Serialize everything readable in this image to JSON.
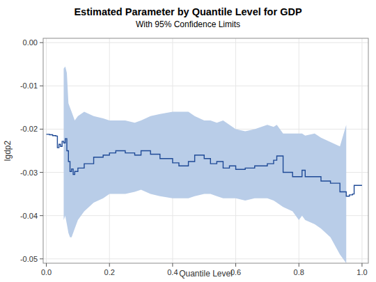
{
  "chart_data": {
    "type": "line",
    "title": "Estimated Parameter by Quantile Level for GDP",
    "subtitle": "With 95% Confidence Limits",
    "x_label": "Quantile Level",
    "y_label": "lgdp2",
    "x": [
      0,
      0.01,
      0.02,
      0.03,
      0.035,
      0.04,
      0.045,
      0.05,
      0.055,
      0.06,
      0.065,
      0.07,
      0.075,
      0.08,
      0.085,
      0.09,
      0.1,
      0.12,
      0.15,
      0.18,
      0.2,
      0.22,
      0.25,
      0.28,
      0.3,
      0.33,
      0.36,
      0.4,
      0.42,
      0.45,
      0.47,
      0.5,
      0.52,
      0.54,
      0.56,
      0.58,
      0.6,
      0.63,
      0.66,
      0.7,
      0.72,
      0.73,
      0.75,
      0.78,
      0.8,
      0.81,
      0.82,
      0.85,
      0.87,
      0.9,
      0.93,
      0.95,
      0.96,
      0.97,
      0.975,
      1.0
    ],
    "series": [
      {
        "color": "#1f4a96",
        "line_style": "step",
        "values": [
          -0.0212,
          -0.0213,
          -0.0215,
          -0.0216,
          -0.0243,
          -0.0235,
          -0.024,
          -0.0228,
          -0.0232,
          -0.0222,
          -0.025,
          -0.0275,
          -0.0298,
          -0.0292,
          -0.0305,
          -0.0298,
          -0.029,
          -0.028,
          -0.0265,
          -0.026,
          -0.0255,
          -0.025,
          -0.0255,
          -0.026,
          -0.025,
          -0.0258,
          -0.0268,
          -0.0278,
          -0.0285,
          -0.0275,
          -0.026,
          -0.0268,
          -0.028,
          -0.0275,
          -0.029,
          -0.0285,
          -0.0293,
          -0.029,
          -0.0285,
          -0.028,
          -0.0272,
          -0.0262,
          -0.03,
          -0.031,
          -0.031,
          -0.0295,
          -0.031,
          -0.031,
          -0.032,
          -0.0325,
          -0.0345,
          -0.0355,
          -0.0352,
          -0.035,
          -0.033,
          -0.033
        ],
        "band_color": "#b9cde8",
        "upper": [
          null,
          null,
          null,
          null,
          null,
          null,
          null,
          null,
          -0.006,
          -0.0055,
          -0.007,
          -0.014,
          -0.015,
          -0.016,
          -0.017,
          -0.018,
          -0.017,
          -0.016,
          -0.017,
          -0.0175,
          -0.018,
          -0.018,
          -0.018,
          -0.0185,
          -0.018,
          -0.017,
          -0.0165,
          -0.016,
          -0.016,
          -0.016,
          -0.017,
          -0.018,
          -0.018,
          -0.0185,
          -0.018,
          -0.019,
          -0.02,
          -0.0205,
          -0.02,
          -0.019,
          -0.0195,
          -0.019,
          -0.021,
          -0.021,
          -0.021,
          -0.021,
          -0.0215,
          -0.021,
          -0.022,
          -0.023,
          -0.024,
          -0.019,
          null,
          null,
          null,
          null
        ],
        "lower": [
          null,
          null,
          null,
          null,
          null,
          null,
          null,
          null,
          -0.041,
          -0.04,
          -0.042,
          -0.044,
          -0.045,
          -0.045,
          -0.044,
          -0.043,
          -0.041,
          -0.039,
          -0.037,
          -0.036,
          -0.035,
          -0.035,
          -0.035,
          -0.0345,
          -0.034,
          -0.035,
          -0.0355,
          -0.036,
          -0.036,
          -0.036,
          -0.0355,
          -0.035,
          -0.035,
          -0.0355,
          -0.036,
          -0.036,
          -0.036,
          -0.0365,
          -0.036,
          -0.036,
          -0.0365,
          -0.037,
          -0.038,
          -0.039,
          -0.041,
          -0.04,
          -0.041,
          -0.042,
          -0.043,
          -0.045,
          -0.049,
          -0.051,
          null,
          null,
          null,
          null
        ]
      }
    ],
    "xlim": [
      -0.01,
      1.02
    ],
    "ylim": [
      -0.051,
      0.001
    ],
    "xticks": [
      {
        "value": 0,
        "label": "0.0"
      },
      0.2,
      0.4,
      0.6,
      0.8,
      {
        "value": 1,
        "label": "1.0"
      }
    ],
    "yticks": [
      -0.05,
      -0.04,
      -0.03,
      -0.02,
      -0.01,
      {
        "value": 0,
        "label": "0.00"
      }
    ],
    "grid": true
  }
}
